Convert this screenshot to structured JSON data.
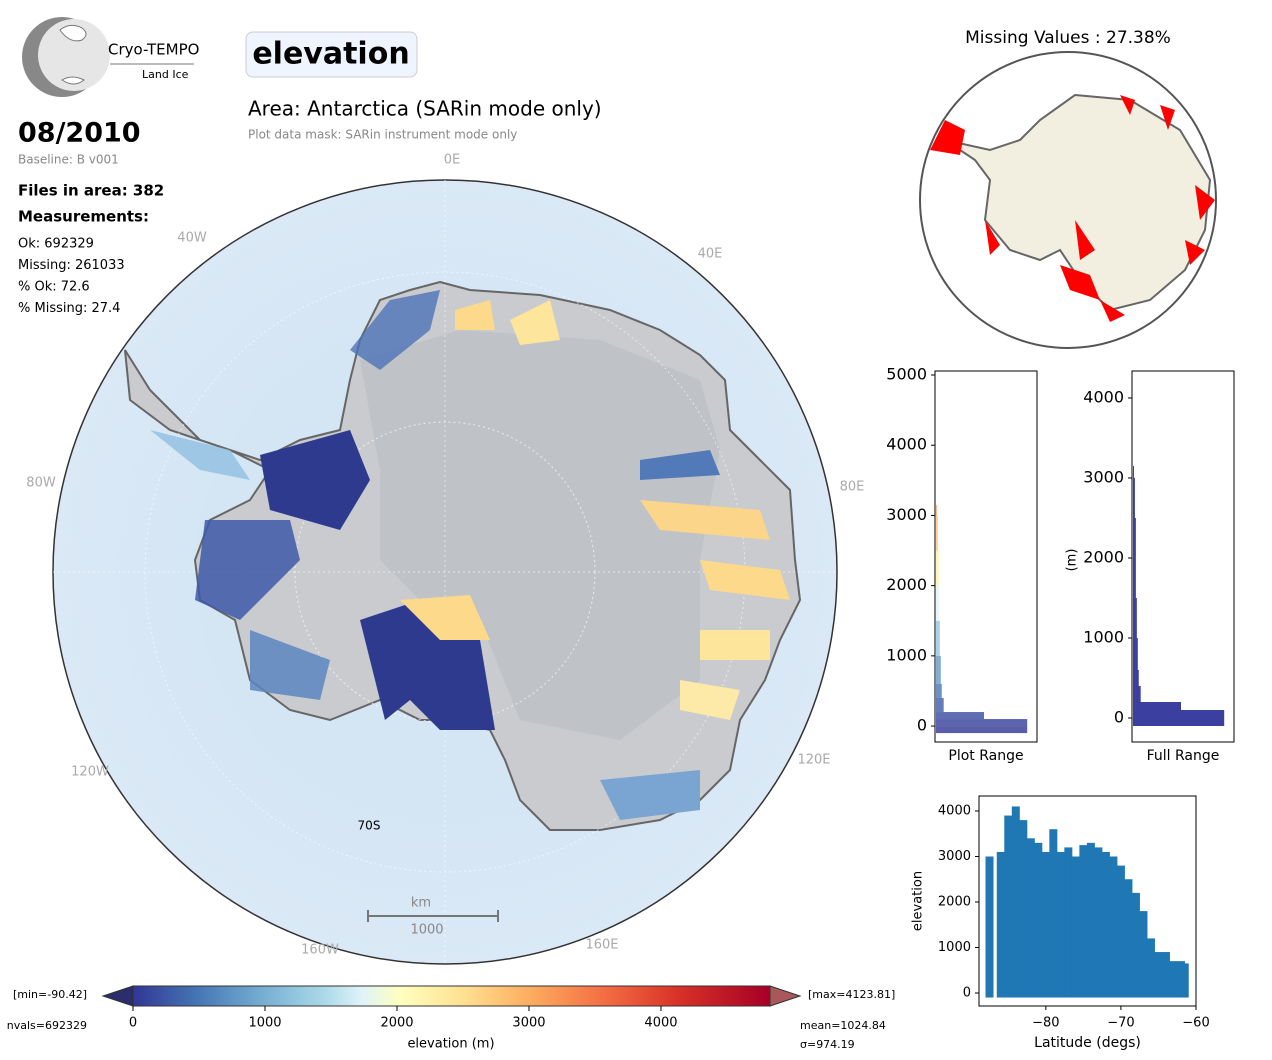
{
  "logo": {
    "name": "Cryo-TEMPO",
    "subtitle": "Land Ice"
  },
  "header": {
    "variable": "elevation",
    "date": "08/2010",
    "baseline": "Baseline: B v001",
    "area": "Area: Antarctica (SARin mode only)",
    "mask": "Plot data mask: SARin instrument mode only"
  },
  "stats": {
    "files": "Files in area: 382",
    "measurements": "Measurements:",
    "lines": [
      "Ok: 692329",
      "Missing: 261033",
      "% Ok: 72.6",
      "% Missing: 27.4"
    ]
  },
  "map": {
    "lon_labels": [
      "0E",
      "40E",
      "80E",
      "120E",
      "160E",
      "160W",
      "120W",
      "80W",
      "40W"
    ],
    "lat_label": "70S",
    "scale_unit": "km",
    "scale_value": "1000"
  },
  "colorbar": {
    "label": "elevation (m)",
    "min_label": "[min=-90.42]",
    "max_label": "[max=4123.81]",
    "nvals": "nvals=692329",
    "mean": "mean=1024.84",
    "sigma": "σ=974.19",
    "lim": [
      0,
      4826
    ],
    "ticks": [
      0,
      1000,
      2000,
      3000,
      4000
    ]
  },
  "missing_map": {
    "title": "Missing Values : 27.38%"
  },
  "histograms": [
    {
      "xlabel": "Plot Range",
      "ylim": [
        -227,
        5057
      ],
      "yticks": [
        0,
        1000,
        2000,
        3000,
        4000,
        5000
      ],
      "bins": [
        -100,
        0,
        100,
        200,
        400,
        600,
        1000,
        1500,
        2000,
        2500,
        3000,
        3150
      ],
      "counts": [
        95,
        95,
        50,
        8,
        6,
        5,
        4,
        3,
        3,
        2,
        1
      ]
    },
    {
      "xlabel": "Full Range",
      "ylabel": "(m)",
      "ylim": [
        -300,
        4337
      ],
      "yticks": [
        0,
        1000,
        2000,
        3000,
        4000
      ],
      "color": "#3a3fa0",
      "bins": [
        -100,
        0,
        100,
        200,
        400,
        600,
        1000,
        1500,
        2000,
        2500,
        3000,
        3150
      ],
      "counts": [
        95,
        95,
        50,
        8,
        6,
        5,
        4,
        3,
        3,
        2,
        1
      ]
    }
  ],
  "scatter": {
    "xlabel": "Latitude (degs)",
    "ylabel": "elevation",
    "color": "#1f77b4",
    "xlim": [
      -88.9,
      -60
    ],
    "ylim": [
      -286,
      4330
    ],
    "xticks": [
      {
        "value": -80,
        "label": "−80"
      },
      {
        "value": -70,
        "label": "−70"
      },
      {
        "value": -60,
        "label": "−60"
      }
    ],
    "yticks": [
      0,
      1000,
      2000,
      3000,
      4000
    ],
    "x": [
      -87.5,
      -86,
      -85,
      -84,
      -83,
      -82,
      -81,
      -80,
      -79,
      -78,
      -77,
      -76,
      -75,
      -74,
      -73,
      -72,
      -71,
      -70,
      -69,
      -68,
      -67,
      -66,
      -65,
      -64,
      -63,
      -62,
      -61.5
    ],
    "low": [
      -100,
      -100,
      -100,
      -100,
      -100,
      -100,
      -100,
      -100,
      -100,
      -100,
      -100,
      -100,
      -100,
      -100,
      -100,
      -100,
      -100,
      -100,
      -100,
      -100,
      -100,
      -100,
      -100,
      -100,
      -100,
      -100,
      -100
    ],
    "high": [
      3000,
      3100,
      3900,
      4100,
      3800,
      3400,
      3300,
      3100,
      3600,
      3100,
      3200,
      3000,
      3250,
      3300,
      3200,
      3100,
      3000,
      2800,
      2500,
      2200,
      1800,
      1200,
      900,
      900,
      700,
      700,
      650
    ]
  }
}
